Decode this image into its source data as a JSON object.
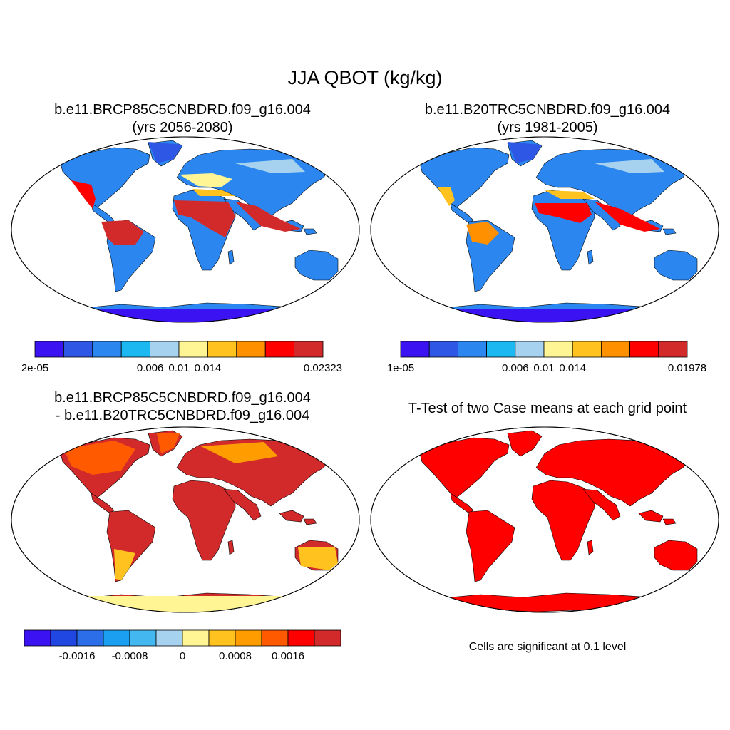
{
  "main_title": "JJA QBOT (kg/kg)",
  "colors": {
    "ocean": "#ffffff",
    "frame": "#000000",
    "seq_levels": [
      "#3b12f2",
      "#2e57e6",
      "#2b87ef",
      "#1bb8f2",
      "#a7d2ef",
      "#fff594",
      "#ffc21f",
      "#ff9000",
      "#ff0000",
      "#d22a2a"
    ],
    "diff_levels": [
      "#3b12f2",
      "#2147e2",
      "#2b6ee8",
      "#1b9ff0",
      "#43b7f0",
      "#a7d2ef",
      "#fff594",
      "#ffc21f",
      "#ff9d00",
      "#ff5a00",
      "#ff0000",
      "#d22a2a"
    ]
  },
  "panels": [
    {
      "name": "future",
      "title_line1": "b.e11.BRCP85C5CNBDRD.f09_g16.004",
      "title_line2": "(yrs 2056-2080)",
      "colorbar": {
        "ticks": [
          "2e-05",
          "0.006",
          "0.01",
          "0.014",
          "0.02323"
        ],
        "tick_positions": [
          0,
          4,
          5,
          6,
          10
        ]
      }
    },
    {
      "name": "historical",
      "title_line1": "b.e11.B20TRC5CNBDRD.f09_g16.004",
      "title_line2": "(yrs 1981-2005)",
      "colorbar": {
        "ticks": [
          "1e-05",
          "0.006",
          "0.01",
          "0.014",
          "0.01978"
        ],
        "tick_positions": [
          0,
          4,
          5,
          6,
          10
        ]
      }
    },
    {
      "name": "difference",
      "title_line1": "b.e11.BRCP85C5CNBDRD.f09_g16.004",
      "title_line2": "- b.e11.B20TRC5CNBDRD.f09_g16.004",
      "colorbar": {
        "ticks": [
          "-0.0016",
          "-0.0008",
          "0",
          "0.0008",
          "0.0016"
        ],
        "tick_positions": [
          2,
          4,
          6,
          8,
          10
        ]
      }
    },
    {
      "name": "ttest",
      "title_line1": "T-Test of two Case means at each grid point",
      "note": "Cells are significant at 0.1 level"
    }
  ]
}
